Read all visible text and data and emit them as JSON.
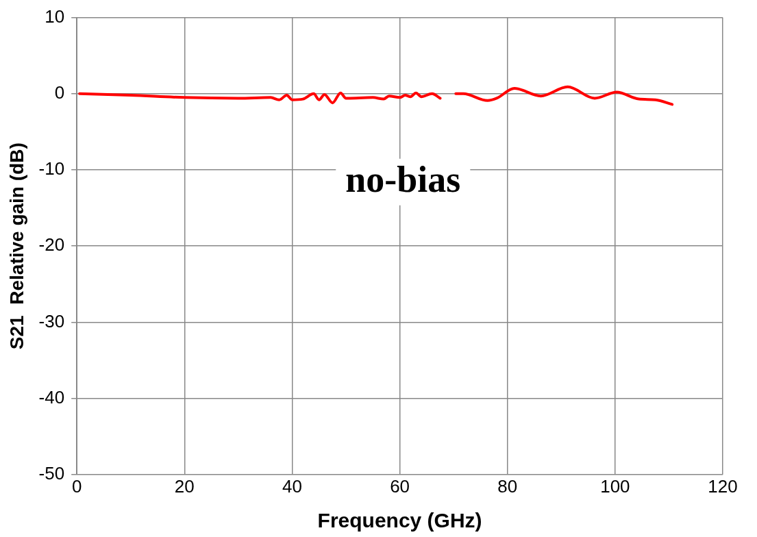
{
  "chart_data": {
    "type": "line",
    "xlabel": "Frequency (GHz)",
    "ylabel": "S21  Relative gain (dB)",
    "annotations": [
      "no-bias"
    ],
    "x": [
      0.5,
      10,
      20,
      30,
      36,
      37.6,
      39,
      40,
      42,
      44,
      45,
      46,
      47.5,
      49,
      50,
      55,
      57,
      58,
      60,
      61,
      62,
      63,
      64,
      66,
      67.5,
      69,
      70.4,
      71.8,
      76.3,
      78,
      81.3,
      86.2,
      91.2,
      96.2,
      100.3,
      104.4,
      107.5,
      110.6
    ],
    "series": [
      {
        "color": "#ff0000",
        "values": [
          0,
          -0.2,
          -0.5,
          -0.6,
          -0.5,
          -0.8,
          -0.2,
          -0.8,
          -0.7,
          0,
          -0.8,
          -0.1,
          -1.2,
          0.1,
          -0.6,
          -0.5,
          -0.7,
          -0.3,
          -0.5,
          -0.2,
          -0.4,
          0.1,
          -0.4,
          0,
          -0.6,
          null,
          0,
          0,
          -0.9,
          -0.6,
          0.7,
          -0.3,
          0.9,
          -0.6,
          0.2,
          -0.7,
          -0.8,
          -1.4
        ]
      }
    ],
    "xlim": [
      0,
      120
    ],
    "xticks": [
      0,
      20,
      40,
      60,
      80,
      100,
      120
    ],
    "ylim": [
      -50,
      10
    ],
    "yticks": [
      -50,
      -40,
      -30,
      -20,
      -10,
      0,
      10
    ],
    "grid": true,
    "legend": false,
    "marker": "none",
    "line_style": "solid"
  }
}
